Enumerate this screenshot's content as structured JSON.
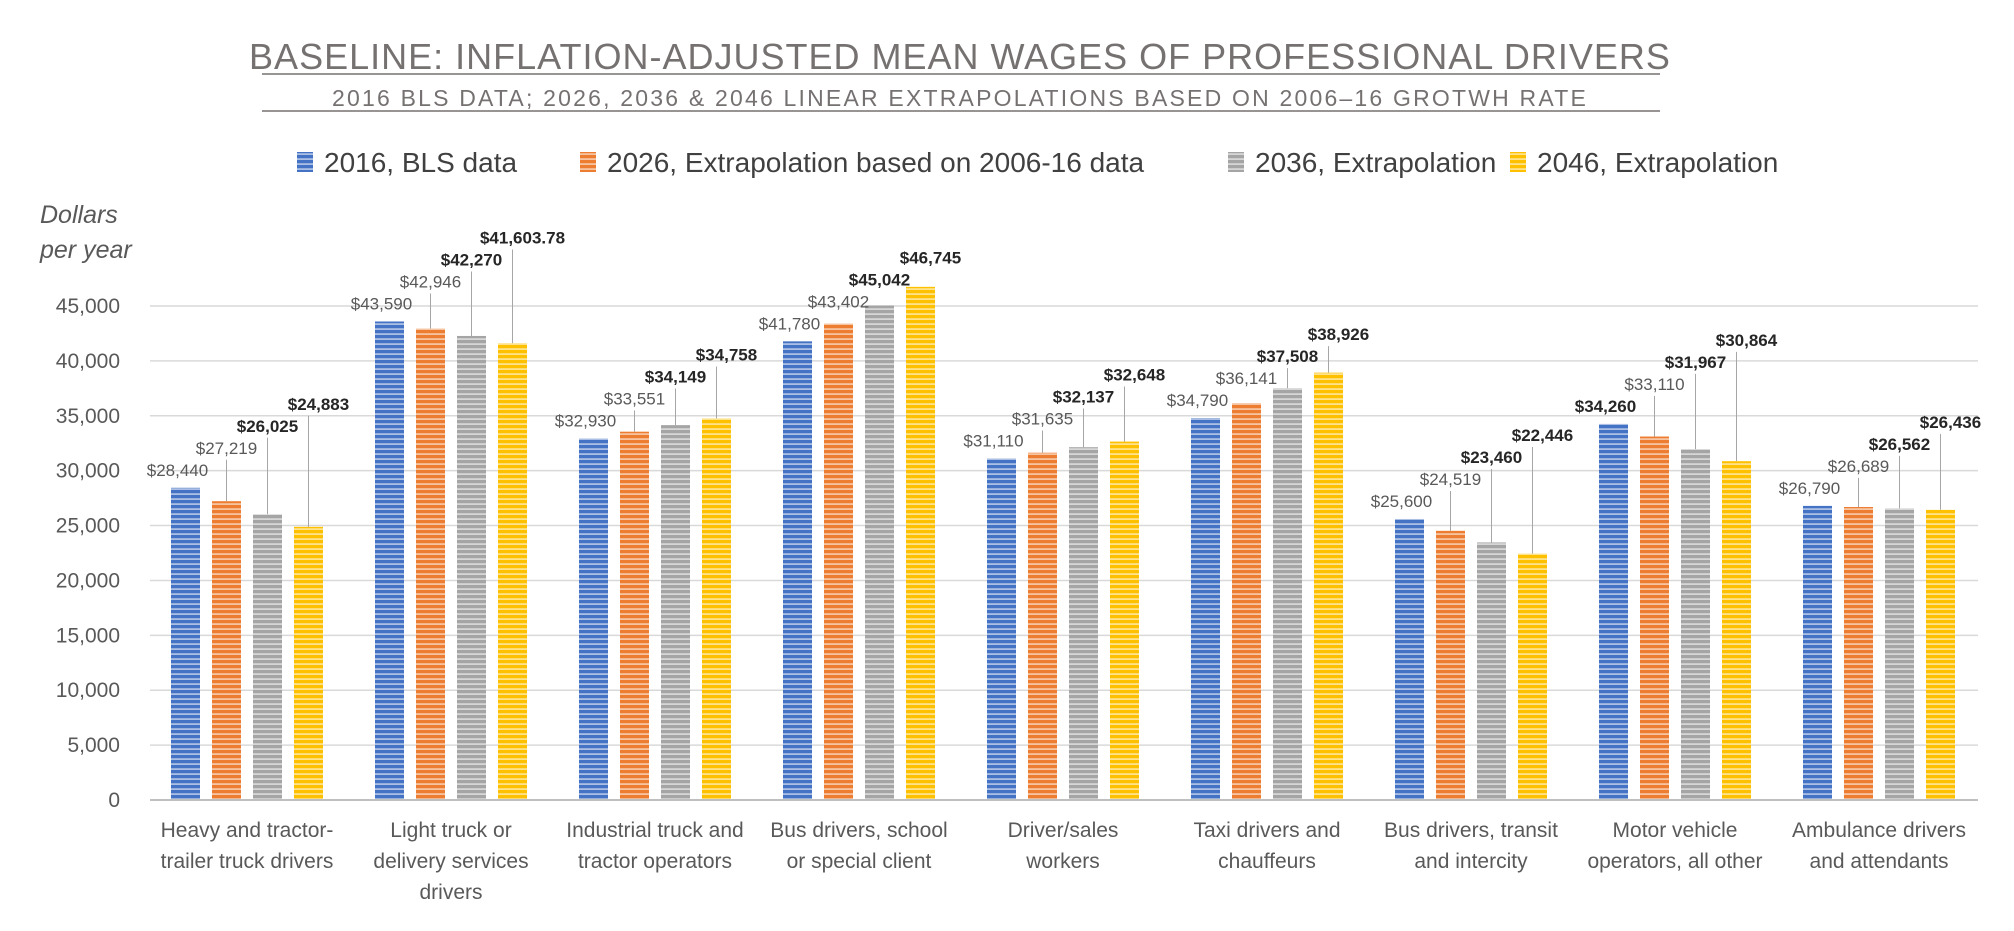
{
  "chart_data": {
    "type": "bar",
    "title": "BASELINE: INFLATION-ADJUSTED MEAN WAGES OF PROFESSIONAL DRIVERS",
    "subtitle": "2016 BLS DATA; 2026, 2036 & 2046 LINEAR EXTRAPOLATIONS BASED ON 2006–16 GROTWH RATE",
    "ylabel": [
      "Dollars",
      "per year"
    ],
    "xlabel": "",
    "ylim": [
      0,
      45000
    ],
    "yticks": [
      0,
      5000,
      10000,
      15000,
      20000,
      25000,
      30000,
      35000,
      40000,
      45000
    ],
    "ytick_labels": [
      "0",
      "5,000",
      "10,000",
      "15,000",
      "20,000",
      "25,000",
      "30,000",
      "35,000",
      "40,000",
      "45,000"
    ],
    "grid": true,
    "legend_position": "top",
    "categories": [
      [
        "Heavy and tractor-",
        "trailer truck drivers"
      ],
      [
        "Light truck or",
        "delivery services",
        "drivers"
      ],
      [
        "Industrial truck and",
        "tractor operators"
      ],
      [
        "Bus drivers, school",
        "or special client"
      ],
      [
        "Driver/sales",
        "workers"
      ],
      [
        "Taxi drivers and",
        "chauffeurs"
      ],
      [
        "Bus drivers, transit",
        "and intercity"
      ],
      [
        "Motor vehicle",
        "operators, all other"
      ],
      [
        "Ambulance drivers",
        "and attendants"
      ]
    ],
    "series": [
      {
        "name": "2016, BLS data",
        "color": "#4472C4",
        "values": [
          28440,
          43590,
          32930,
          41780,
          31110,
          34790,
          25600,
          34260,
          26790
        ],
        "labels": [
          "$28,440",
          "$43,590",
          "$32,930",
          "$41,780",
          "$31,110",
          "$34,790",
          "$25,600",
          "$34,260",
          "$26,790"
        ]
      },
      {
        "name": "2026, Extrapolation based on 2006-16 data",
        "color": "#ED7D31",
        "values": [
          27219,
          42946,
          33551,
          43402,
          31635,
          36141,
          24519,
          33110,
          26689
        ],
        "labels": [
          "$27,219",
          "$42,946",
          "$33,551",
          "$43,402",
          "$31,635",
          "$36,141",
          "$24,519",
          "$33,110",
          "$26,689"
        ]
      },
      {
        "name": "2036, Extrapolation",
        "color": "#A5A5A5",
        "values": [
          26025,
          42270,
          34149,
          45042,
          32137,
          37508,
          23460,
          31967,
          26562
        ],
        "labels": [
          "$26,025",
          "$42,270",
          "$34,149",
          "$45,042",
          "$32,137",
          "$37,508",
          "$23,460",
          "$31,967",
          "$26,562"
        ]
      },
      {
        "name": "2046, Extrapolation",
        "color": "#FFC000",
        "values": [
          24883,
          41603.78,
          34758,
          46745,
          32648,
          38926,
          22446,
          30864,
          26436
        ],
        "labels": [
          "$24,883",
          "$41,603.78",
          "$34,758",
          "$46,745",
          "$32,648",
          "$38,926",
          "$22,446",
          "$30,864",
          "$26,436"
        ]
      }
    ],
    "bold_labels": [
      [
        false,
        false,
        true,
        true
      ],
      [
        false,
        false,
        true,
        true
      ],
      [
        false,
        false,
        true,
        true
      ],
      [
        false,
        false,
        true,
        true
      ],
      [
        false,
        false,
        true,
        true
      ],
      [
        false,
        false,
        true,
        true
      ],
      [
        false,
        false,
        true,
        true
      ],
      [
        true,
        false,
        true,
        true
      ],
      [
        false,
        false,
        true,
        true
      ]
    ]
  }
}
